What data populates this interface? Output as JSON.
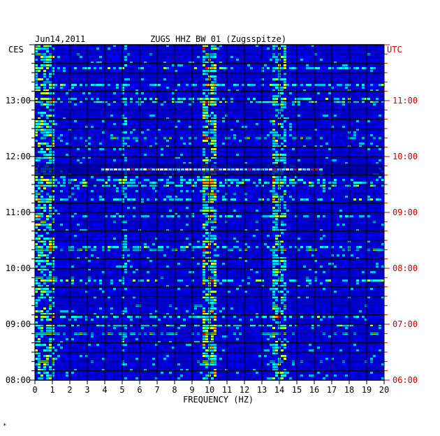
{
  "chart_data": {
    "type": "heatmap",
    "title": "ZUGS HHZ BW 01 (Zugsspitze)",
    "date": "Jun14,2011",
    "xlabel": "FREQUENCY (HZ)",
    "left_zone_label": "CES",
    "right_zone_label": "UTC",
    "xlim": [
      0,
      20
    ],
    "x_ticks": [
      "0",
      "1",
      "2",
      "3",
      "4",
      "5",
      "6",
      "7",
      "8",
      "9",
      "10",
      "11",
      "12",
      "13",
      "14",
      "15",
      "16",
      "17",
      "18",
      "19",
      "20"
    ],
    "left_ticks": [
      "08:00",
      "09:00",
      "10:00",
      "11:00",
      "12:00",
      "13:00"
    ],
    "right_ticks": [
      "06:00",
      "07:00",
      "08:00",
      "09:00",
      "10:00",
      "11:00"
    ],
    "grid": true,
    "colormap": [
      "#00008b",
      "#0000ff",
      "#00bfff",
      "#00ffff",
      "#adff2f",
      "#ffff00",
      "#ff8c00",
      "#ff0000"
    ]
  },
  "footer_mark": "*"
}
